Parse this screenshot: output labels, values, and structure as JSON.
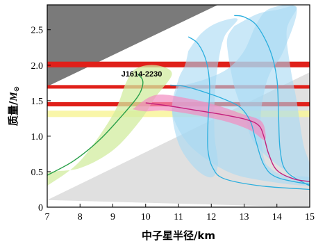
{
  "chart_data": {
    "type": "line",
    "xlabel": "中子星半径/km",
    "ylabel_main": "质量/",
    "ylabel_unit": "M",
    "ylabel_sub": "⊙",
    "xlim": [
      7,
      15
    ],
    "ylim": [
      0,
      2.85
    ],
    "xticks": [
      7,
      8,
      9,
      10,
      11,
      12,
      13,
      14,
      15
    ],
    "xtick_labels": [
      "7",
      "8",
      "9",
      "10",
      "11",
      "12",
      "13",
      "14",
      "15"
    ],
    "yticks": [
      0,
      0.5,
      1.0,
      1.5,
      2.0,
      2.5
    ],
    "ytick_labels": [
      "0",
      "0.5",
      "1.0",
      "1.5",
      "2.0",
      "2.5"
    ],
    "grid": false,
    "annotation": {
      "text": "J1614-2230",
      "x": 9.3,
      "y": 1.88
    },
    "colors": {
      "gray_dark": "#7a7a7a",
      "gray_light": "#e0e0e0",
      "red": "#e0201a",
      "yellow": "#f8f49a",
      "green_band": "#d2ec9f",
      "green_line": "#2aa04a",
      "blue_band": "#a7d8f4",
      "blue_line": "#2aaede",
      "pink_band": "#f28cc0",
      "magenta_line": "#c4207e"
    },
    "regions": {
      "excluded_upper": [
        [
          7,
          1.7
        ],
        [
          7,
          2.85
        ],
        [
          12.2,
          2.85
        ]
      ],
      "excluded_lower": [
        [
          7,
          0.1
        ],
        [
          15,
          1.9
        ],
        [
          15,
          0
        ]
      ]
    },
    "horizontal_bands": [
      {
        "name": "red-band-top",
        "y_low": 1.97,
        "y_high": 2.05,
        "color": "red"
      },
      {
        "name": "red-band-middle",
        "y_low": 1.67,
        "y_high": 1.72,
        "color": "red"
      },
      {
        "name": "red-band-bottom",
        "y_low": 1.42,
        "y_high": 1.48,
        "color": "red"
      },
      {
        "name": "yellow-band",
        "y_low": 1.27,
        "y_high": 1.36,
        "color": "yellow"
      }
    ],
    "green_band_outline": [
      [
        7,
        0.3
      ],
      [
        8,
        0.65
      ],
      [
        9,
        1.3
      ],
      [
        9.4,
        1.75
      ],
      [
        9.7,
        1.95
      ],
      [
        10.3,
        2.0
      ],
      [
        10.8,
        1.88
      ],
      [
        10.3,
        1.55
      ],
      [
        9.8,
        1.2
      ],
      [
        9.0,
        0.8
      ],
      [
        8.0,
        0.55
      ],
      [
        7,
        0.48
      ]
    ],
    "green_curve": [
      [
        7,
        0.45
      ],
      [
        7.8,
        0.65
      ],
      [
        8.6,
        0.95
      ],
      [
        9.3,
        1.3
      ],
      [
        9.75,
        1.55
      ],
      [
        9.9,
        1.7
      ],
      [
        9.9,
        1.8
      ],
      [
        9.75,
        1.88
      ]
    ],
    "blue_bands": [
      {
        "name": "blue-band-1",
        "outline": [
          [
            11.3,
            2.2
          ],
          [
            11.2,
            2.0
          ],
          [
            11.0,
            1.8
          ],
          [
            10.8,
            1.4
          ],
          [
            11.0,
            0.9
          ],
          [
            11.5,
            0.55
          ],
          [
            12.0,
            0.42
          ],
          [
            12.2,
            0.6
          ],
          [
            12.1,
            1.0
          ],
          [
            12.1,
            1.5
          ],
          [
            12.2,
            2.0
          ],
          [
            12.4,
            2.4
          ],
          [
            12.8,
            2.65
          ],
          [
            12.2,
            2.6
          ],
          [
            11.7,
            2.45
          ]
        ]
      },
      {
        "name": "blue-band-2",
        "outline": [
          [
            12.7,
            2.55
          ],
          [
            12.5,
            2.4
          ],
          [
            12.5,
            2.2
          ],
          [
            12.7,
            1.7
          ],
          [
            13.0,
            1.3
          ],
          [
            13.2,
            1.0
          ],
          [
            13.5,
            0.8
          ],
          [
            14.0,
            0.6
          ],
          [
            14.5,
            0.45
          ],
          [
            15,
            0.35
          ],
          [
            15,
            0.6
          ],
          [
            14.8,
            0.9
          ],
          [
            14.6,
            1.5
          ],
          [
            14.4,
            2.0
          ],
          [
            14.3,
            2.5
          ],
          [
            14.6,
            2.82
          ],
          [
            14.0,
            2.78
          ],
          [
            13.4,
            2.72
          ]
        ]
      },
      {
        "name": "blue-band-3",
        "outline": [
          [
            11.0,
            1.7
          ],
          [
            10.8,
            1.4
          ],
          [
            11.0,
            1.1
          ],
          [
            11.5,
            0.8
          ],
          [
            12.5,
            0.5
          ],
          [
            13.5,
            0.38
          ],
          [
            15,
            0.3
          ],
          [
            15,
            0.42
          ],
          [
            14.2,
            0.45
          ],
          [
            13.8,
            0.55
          ],
          [
            13.6,
            0.7
          ],
          [
            13.5,
            1.2
          ],
          [
            13.6,
            1.6
          ],
          [
            13.8,
            1.9
          ],
          [
            14.2,
            2.2
          ],
          [
            14.6,
            2.8
          ],
          [
            13.8,
            2.8
          ],
          [
            13.4,
            2.6
          ],
          [
            13.0,
            2.2
          ],
          [
            12.5,
            1.95
          ],
          [
            11.8,
            1.8
          ]
        ]
      }
    ],
    "blue_curves": [
      [
        [
          11.3,
          2.4
        ],
        [
          11.6,
          2.3
        ],
        [
          11.85,
          2.05
        ],
        [
          11.95,
          1.7
        ],
        [
          11.9,
          1.2
        ],
        [
          11.9,
          0.8
        ],
        [
          12.05,
          0.55
        ],
        [
          12.4,
          0.4
        ],
        [
          13.5,
          0.3
        ],
        [
          15,
          0.25
        ]
      ],
      [
        [
          12.7,
          2.7
        ],
        [
          13.0,
          2.68
        ],
        [
          13.4,
          2.55
        ],
        [
          13.8,
          2.2
        ],
        [
          14.0,
          1.8
        ],
        [
          14.05,
          1.3
        ],
        [
          14.1,
          0.8
        ],
        [
          14.3,
          0.5
        ],
        [
          15,
          0.3
        ]
      ],
      [
        [
          10.75,
          1.72
        ],
        [
          11.2,
          1.7
        ],
        [
          11.8,
          1.62
        ],
        [
          12.4,
          1.52
        ],
        [
          12.9,
          1.4
        ],
        [
          13.2,
          1.2
        ],
        [
          13.35,
          0.95
        ],
        [
          13.6,
          0.6
        ],
        [
          14.0,
          0.42
        ],
        [
          15,
          0.32
        ]
      ]
    ],
    "pink_band_outline": [
      [
        9.6,
        1.38
      ],
      [
        10.3,
        1.58
      ],
      [
        11.3,
        1.53
      ],
      [
        12.2,
        1.43
      ],
      [
        12.9,
        1.32
      ],
      [
        13.5,
        1.22
      ],
      [
        13.65,
        1.05
      ],
      [
        13.6,
        0.95
      ],
      [
        13.2,
        1.08
      ],
      [
        12.5,
        1.2
      ],
      [
        11.5,
        1.3
      ],
      [
        10.6,
        1.36
      ],
      [
        10.0,
        1.35
      ]
    ],
    "magenta_curve": [
      [
        10.0,
        1.47
      ],
      [
        10.8,
        1.42
      ],
      [
        11.6,
        1.36
      ],
      [
        12.4,
        1.3
      ],
      [
        13.1,
        1.23
      ],
      [
        13.45,
        1.15
      ],
      [
        13.6,
        1.0
      ],
      [
        13.75,
        0.75
      ],
      [
        14.0,
        0.52
      ],
      [
        14.5,
        0.4
      ],
      [
        15,
        0.36
      ]
    ]
  }
}
